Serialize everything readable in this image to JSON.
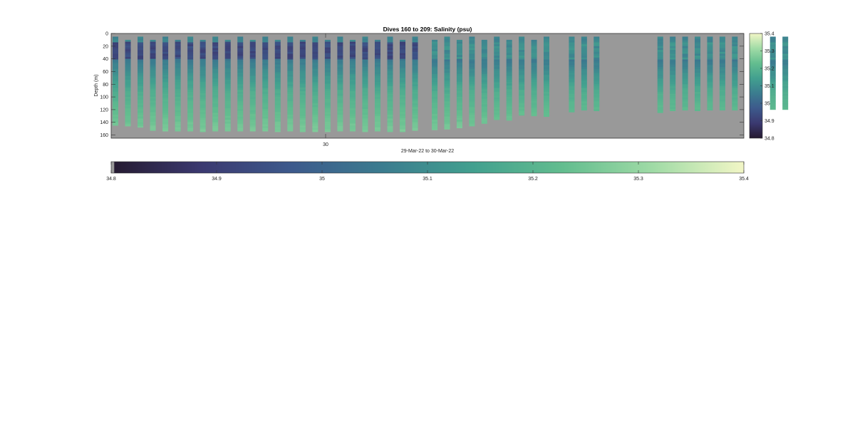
{
  "chart_data": {
    "type": "heatmap",
    "title": "Dives 160 to 209: Salinity (psu)",
    "ylabel": "Depth (m)",
    "xlabel": "29-Mar-22 to 30-Mar-22",
    "y_ticks": [
      "0",
      "20",
      "40",
      "60",
      "80",
      "100",
      "120",
      "140",
      "160"
    ],
    "ylim": [
      0,
      165
    ],
    "y_reversed": true,
    "x_ticks": [
      "30"
    ],
    "color_range": [
      34.8,
      35.4
    ],
    "colorbar_ticks": [
      "34.8",
      "34.9",
      "35",
      "35.1",
      "35.2",
      "35.3",
      "35.4"
    ],
    "colormap": [
      "#251a30",
      "#3b3970",
      "#3d5a8c",
      "#3b7c8f",
      "#42a08f",
      "#63bd8f",
      "#a0dba6",
      "#f2f6c6"
    ],
    "missing_color": "#999999",
    "grid": false,
    "profiles_depth_m": [
      [
        5,
        145
      ],
      [
        10,
        146
      ],
      [
        5,
        148
      ],
      [
        10,
        153
      ],
      [
        5,
        154
      ],
      [
        10,
        154
      ],
      [
        5,
        154
      ],
      [
        10,
        155
      ],
      [
        5,
        154
      ],
      [
        10,
        154
      ],
      [
        5,
        154
      ],
      [
        10,
        154
      ],
      [
        5,
        154
      ],
      [
        10,
        155
      ],
      [
        5,
        154
      ],
      [
        10,
        155
      ],
      [
        5,
        155
      ],
      [
        10,
        155
      ],
      [
        5,
        154
      ],
      [
        10,
        154
      ],
      [
        5,
        155
      ],
      [
        10,
        154
      ],
      [
        5,
        155
      ],
      [
        10,
        155
      ],
      [
        5,
        153
      ],
      [
        10,
        152
      ],
      [
        5,
        151
      ],
      [
        10,
        149
      ],
      [
        5,
        146
      ],
      [
        10,
        142
      ],
      [
        5,
        136
      ],
      [
        10,
        137
      ],
      [
        5,
        129
      ],
      [
        10,
        130
      ],
      [
        5,
        131
      ],
      [
        5,
        124
      ],
      [
        5,
        121
      ],
      [
        5,
        122
      ],
      [
        5,
        125
      ],
      [
        5,
        122
      ],
      [
        5,
        121
      ],
      [
        5,
        122
      ],
      [
        5,
        121
      ],
      [
        5,
        121
      ],
      [
        5,
        121
      ],
      [
        5,
        120
      ],
      [
        5,
        120
      ]
    ]
  },
  "colors": {
    "axes_bg": "#999999",
    "axis": "#333333"
  }
}
